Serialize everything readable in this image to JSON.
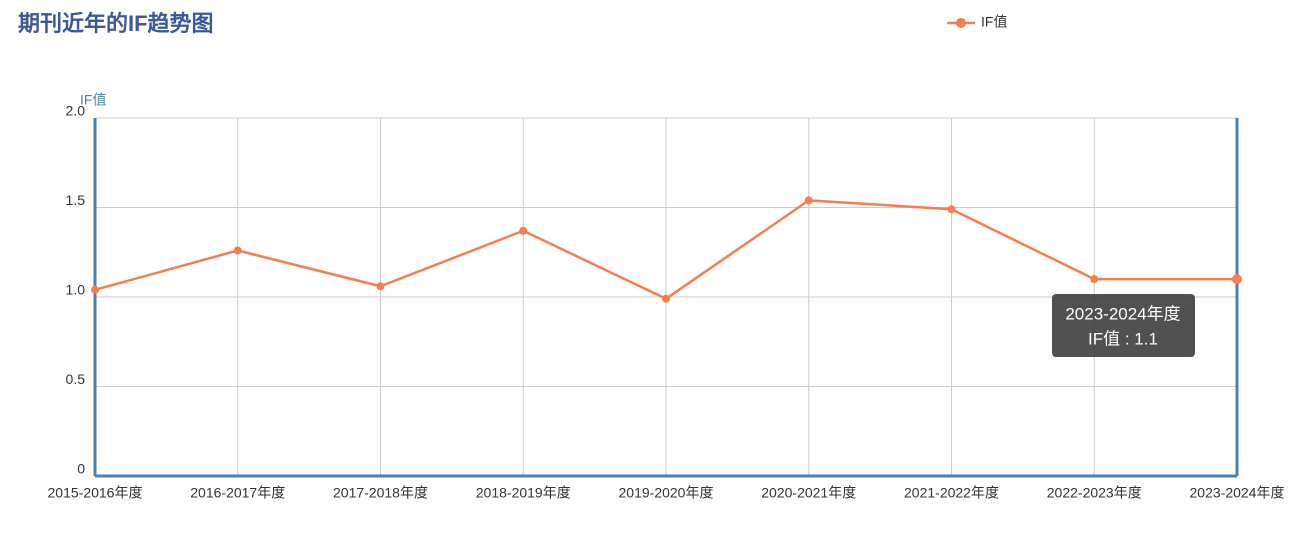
{
  "chart_data": {
    "type": "line",
    "title": "期刊近年的IF趋势图",
    "y_axis_label": "IF值",
    "categories": [
      "2015-2016年度",
      "2016-2017年度",
      "2017-2018年度",
      "2018-2019年度",
      "2019-2020年度",
      "2020-2021年度",
      "2021-2022年度",
      "2022-2023年度",
      "2023-2024年度"
    ],
    "series": [
      {
        "name": "IF值",
        "color": "#f47f4e",
        "values": [
          1.04,
          1.26,
          1.06,
          1.37,
          0.99,
          1.54,
          1.49,
          1.1,
          1.1
        ]
      }
    ],
    "ylim": [
      0,
      2
    ],
    "yticks": [
      0,
      0.5,
      {
        "value": 1,
        "label": "1.0"
      },
      1.5,
      {
        "value": 2,
        "label": "2.0"
      }
    ],
    "grid": true,
    "tooltip": {
      "title": "2023-2024年度",
      "text": "IF值 : 1.1"
    }
  }
}
